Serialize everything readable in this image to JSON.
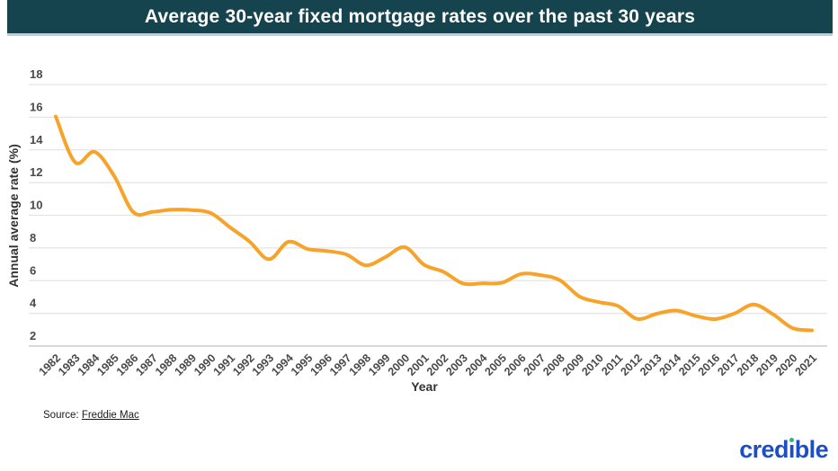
{
  "chart_data": {
    "type": "line",
    "title": "Average 30-year fixed mortgage rates over the past 30 years",
    "xlabel": "Year",
    "ylabel": "Annual average rate (%)",
    "x": [
      1982,
      1983,
      1984,
      1985,
      1986,
      1987,
      1988,
      1989,
      1990,
      1991,
      1992,
      1993,
      1994,
      1995,
      1996,
      1997,
      1998,
      1999,
      2000,
      2001,
      2002,
      2003,
      2004,
      2005,
      2006,
      2007,
      2008,
      2009,
      2010,
      2011,
      2012,
      2013,
      2014,
      2015,
      2016,
      2017,
      2018,
      2019,
      2020,
      2021
    ],
    "series": [
      {
        "name": "Average 30-year fixed mortgage rate (%)",
        "values": [
          16.04,
          13.24,
          13.88,
          12.43,
          10.19,
          10.21,
          10.34,
          10.32,
          10.13,
          9.25,
          8.39,
          7.31,
          8.38,
          7.93,
          7.81,
          7.6,
          6.94,
          7.44,
          8.05,
          6.97,
          6.54,
          5.83,
          5.84,
          5.87,
          6.41,
          6.34,
          6.03,
          5.04,
          4.69,
          4.45,
          3.66,
          3.98,
          4.17,
          3.85,
          3.65,
          3.99,
          4.54,
          3.94,
          3.1,
          2.96
        ]
      }
    ],
    "yticks": [
      2,
      4,
      6,
      8,
      10,
      12,
      14,
      16,
      18
    ],
    "ylim": [
      2,
      18
    ],
    "grid": true,
    "legend": "none",
    "line_color": "#F7A329"
  },
  "source": {
    "prefix": "Source: ",
    "link_text": "Freddie Mac"
  },
  "brand": {
    "name": "credible",
    "pre": "cred",
    "dotted_letter": "ı",
    "post": "ble",
    "blue": "#1d4fc3",
    "green": "#2fb57c"
  },
  "colors": {
    "title_bar_background": "#15444F",
    "title_text": "#ffffff",
    "line": "#F7A329",
    "gridline": "#e4e4e4",
    "tick_label": "#4a4a4a"
  }
}
